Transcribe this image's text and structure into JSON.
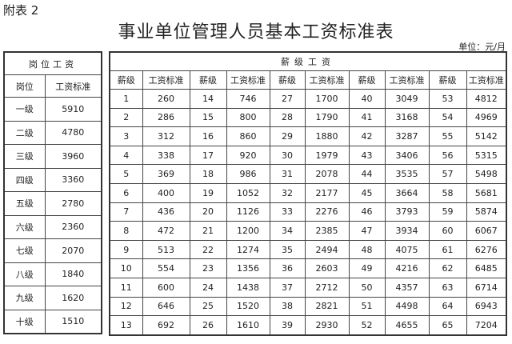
{
  "appendix_label": "附表 2",
  "title": "事业单位管理人员基本工资标准表",
  "unit": "单位：元/月",
  "post_table": {
    "heading": "岗位工资",
    "columns": [
      "岗位",
      "工资标准"
    ],
    "rows": [
      [
        "一级",
        "5910"
      ],
      [
        "二级",
        "4780"
      ],
      [
        "三级",
        "3960"
      ],
      [
        "四级",
        "3360"
      ],
      [
        "五级",
        "2780"
      ],
      [
        "六级",
        "2360"
      ],
      [
        "七级",
        "2070"
      ],
      [
        "八级",
        "1840"
      ],
      [
        "九级",
        "1620"
      ],
      [
        "十级",
        "1510"
      ]
    ]
  },
  "grade_table": {
    "heading": "薪级工资",
    "columns": [
      "薪级",
      "工资标准",
      "薪级",
      "工资标准",
      "薪级",
      "工资标准",
      "薪级",
      "工资标准",
      "薪级",
      "工资标准"
    ],
    "rows": [
      [
        "1",
        "260",
        "14",
        "746",
        "27",
        "1700",
        "40",
        "3049",
        "53",
        "4812"
      ],
      [
        "2",
        "286",
        "15",
        "800",
        "28",
        "1790",
        "41",
        "3168",
        "54",
        "4969"
      ],
      [
        "3",
        "312",
        "16",
        "860",
        "29",
        "1880",
        "42",
        "3287",
        "55",
        "5142"
      ],
      [
        "4",
        "338",
        "17",
        "920",
        "30",
        "1979",
        "43",
        "3406",
        "56",
        "5315"
      ],
      [
        "5",
        "369",
        "18",
        "986",
        "31",
        "2078",
        "44",
        "3535",
        "57",
        "5498"
      ],
      [
        "6",
        "400",
        "19",
        "1052",
        "32",
        "2177",
        "45",
        "3664",
        "58",
        "5681"
      ],
      [
        "7",
        "436",
        "20",
        "1126",
        "33",
        "2276",
        "46",
        "3793",
        "59",
        "5874"
      ],
      [
        "8",
        "472",
        "21",
        "1200",
        "34",
        "2385",
        "47",
        "3934",
        "60",
        "6067"
      ],
      [
        "9",
        "513",
        "22",
        "1274",
        "35",
        "2494",
        "48",
        "4075",
        "61",
        "6276"
      ],
      [
        "10",
        "554",
        "23",
        "1356",
        "36",
        "2603",
        "49",
        "4216",
        "62",
        "6485"
      ],
      [
        "11",
        "600",
        "24",
        "1438",
        "37",
        "2712",
        "50",
        "4357",
        "63",
        "6714"
      ],
      [
        "12",
        "646",
        "25",
        "1520",
        "38",
        "2821",
        "51",
        "4498",
        "64",
        "6943"
      ],
      [
        "13",
        "692",
        "26",
        "1610",
        "39",
        "2930",
        "52",
        "4655",
        "65",
        "7204"
      ]
    ]
  }
}
